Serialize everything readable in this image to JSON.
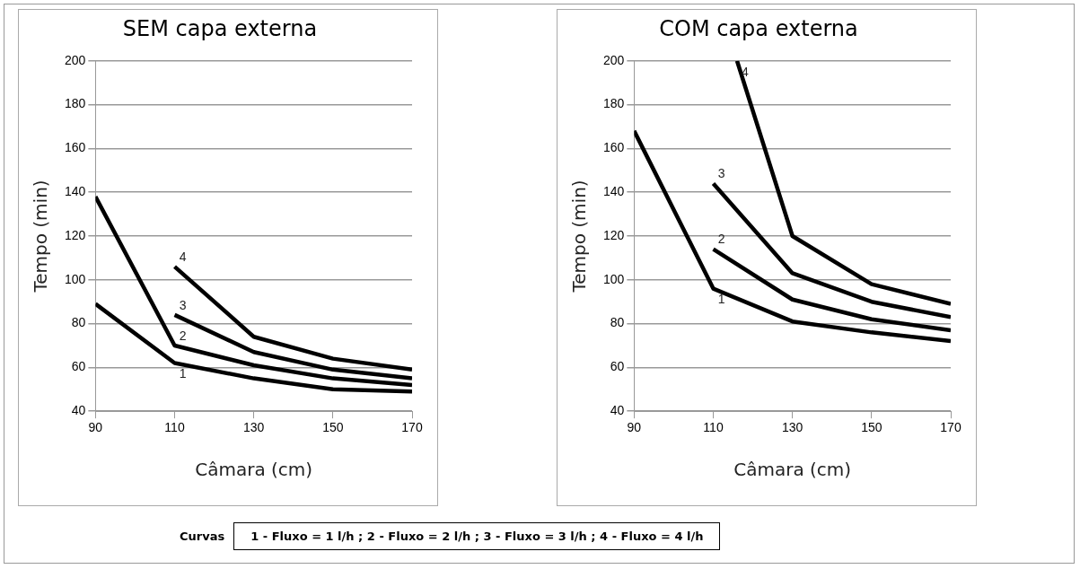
{
  "chart_data": [
    {
      "type": "line",
      "title": "SEM capa externa",
      "xlabel": "Câmara (cm)",
      "ylabel": "Tempo (min)",
      "xlim": [
        90,
        170
      ],
      "xticks": [
        90,
        110,
        130,
        150,
        170
      ],
      "ylim": [
        40,
        200
      ],
      "yticks": [
        40,
        60,
        80,
        100,
        120,
        140,
        160,
        180,
        200
      ],
      "grid": "y",
      "legend": false,
      "marker": "none",
      "line_style": "solid",
      "series": [
        {
          "name": "1",
          "color": "#000000",
          "x": [
            90,
            110,
            130,
            150,
            170
          ],
          "values": [
            89,
            62,
            55,
            50,
            49
          ]
        },
        {
          "name": "2",
          "color": "#000000",
          "x": [
            90,
            110,
            130,
            150,
            170
          ],
          "values": [
            138,
            70,
            61,
            55,
            52
          ]
        },
        {
          "name": "3",
          "color": "#000000",
          "x": [
            110,
            130,
            150,
            170
          ],
          "values": [
            84,
            67,
            59,
            55
          ]
        },
        {
          "name": "4",
          "color": "#000000",
          "x": [
            110,
            130,
            150,
            170
          ],
          "values": [
            106,
            74,
            64,
            59
          ]
        }
      ]
    },
    {
      "type": "line",
      "title": "COM capa externa",
      "xlabel": "Câmara (cm)",
      "ylabel": "Tempo (min)",
      "xlim": [
        90,
        170
      ],
      "xticks": [
        90,
        110,
        130,
        150,
        170
      ],
      "ylim": [
        40,
        200
      ],
      "yticks": [
        40,
        60,
        80,
        100,
        120,
        140,
        160,
        180,
        200
      ],
      "grid": "y",
      "legend": false,
      "marker": "none",
      "line_style": "solid",
      "series": [
        {
          "name": "1",
          "color": "#000000",
          "x": [
            90,
            110,
            130,
            150,
            170
          ],
          "values": [
            168,
            96,
            81,
            76,
            72
          ]
        },
        {
          "name": "2",
          "color": "#000000",
          "x": [
            110,
            130,
            150,
            170
          ],
          "values": [
            114,
            91,
            82,
            77
          ]
        },
        {
          "name": "3",
          "color": "#000000",
          "x": [
            110,
            130,
            150,
            170
          ],
          "values": [
            144,
            103,
            90,
            83
          ]
        },
        {
          "name": "4",
          "color": "#000000",
          "x": [
            116,
            130,
            150,
            170
          ],
          "values": [
            200,
            120,
            98,
            89
          ]
        }
      ]
    },
    {
      "type": "other",
      "annotations": [
        "Curvas",
        "1 - Fluxo = 1 l/h  ;  2 - Fluxo = 2 l/h  ;  3 - Fluxo = 3 l/h  ;  4 - Fluxo = 4 l/h"
      ]
    }
  ]
}
